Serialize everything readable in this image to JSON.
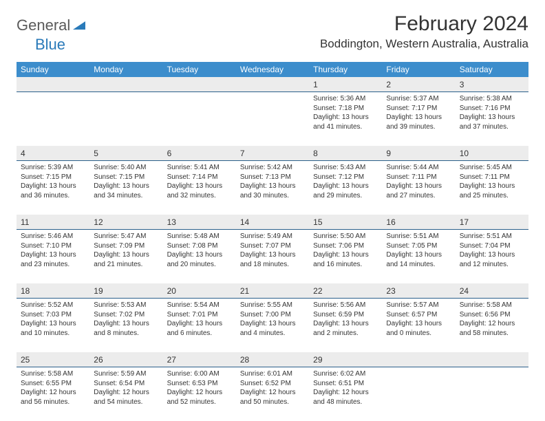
{
  "brand": {
    "name_a": "General",
    "name_b": "Blue"
  },
  "title": "February 2024",
  "location": "Boddington, Western Australia, Australia",
  "colors": {
    "header_bg": "#3c8dcc",
    "header_text": "#ffffff",
    "daynum_bg": "#ececec",
    "daynum_border": "#2a5f8a",
    "text": "#333333",
    "logo_gray": "#5a5a5a",
    "logo_blue": "#2a7ab9"
  },
  "day_labels": [
    "Sunday",
    "Monday",
    "Tuesday",
    "Wednesday",
    "Thursday",
    "Friday",
    "Saturday"
  ],
  "weeks": [
    [
      {
        "num": "",
        "sunrise": "",
        "sunset": "",
        "daylight": ""
      },
      {
        "num": "",
        "sunrise": "",
        "sunset": "",
        "daylight": ""
      },
      {
        "num": "",
        "sunrise": "",
        "sunset": "",
        "daylight": ""
      },
      {
        "num": "",
        "sunrise": "",
        "sunset": "",
        "daylight": ""
      },
      {
        "num": "1",
        "sunrise": "Sunrise: 5:36 AM",
        "sunset": "Sunset: 7:18 PM",
        "daylight": "Daylight: 13 hours and 41 minutes."
      },
      {
        "num": "2",
        "sunrise": "Sunrise: 5:37 AM",
        "sunset": "Sunset: 7:17 PM",
        "daylight": "Daylight: 13 hours and 39 minutes."
      },
      {
        "num": "3",
        "sunrise": "Sunrise: 5:38 AM",
        "sunset": "Sunset: 7:16 PM",
        "daylight": "Daylight: 13 hours and 37 minutes."
      }
    ],
    [
      {
        "num": "4",
        "sunrise": "Sunrise: 5:39 AM",
        "sunset": "Sunset: 7:15 PM",
        "daylight": "Daylight: 13 hours and 36 minutes."
      },
      {
        "num": "5",
        "sunrise": "Sunrise: 5:40 AM",
        "sunset": "Sunset: 7:15 PM",
        "daylight": "Daylight: 13 hours and 34 minutes."
      },
      {
        "num": "6",
        "sunrise": "Sunrise: 5:41 AM",
        "sunset": "Sunset: 7:14 PM",
        "daylight": "Daylight: 13 hours and 32 minutes."
      },
      {
        "num": "7",
        "sunrise": "Sunrise: 5:42 AM",
        "sunset": "Sunset: 7:13 PM",
        "daylight": "Daylight: 13 hours and 30 minutes."
      },
      {
        "num": "8",
        "sunrise": "Sunrise: 5:43 AM",
        "sunset": "Sunset: 7:12 PM",
        "daylight": "Daylight: 13 hours and 29 minutes."
      },
      {
        "num": "9",
        "sunrise": "Sunrise: 5:44 AM",
        "sunset": "Sunset: 7:11 PM",
        "daylight": "Daylight: 13 hours and 27 minutes."
      },
      {
        "num": "10",
        "sunrise": "Sunrise: 5:45 AM",
        "sunset": "Sunset: 7:11 PM",
        "daylight": "Daylight: 13 hours and 25 minutes."
      }
    ],
    [
      {
        "num": "11",
        "sunrise": "Sunrise: 5:46 AM",
        "sunset": "Sunset: 7:10 PM",
        "daylight": "Daylight: 13 hours and 23 minutes."
      },
      {
        "num": "12",
        "sunrise": "Sunrise: 5:47 AM",
        "sunset": "Sunset: 7:09 PM",
        "daylight": "Daylight: 13 hours and 21 minutes."
      },
      {
        "num": "13",
        "sunrise": "Sunrise: 5:48 AM",
        "sunset": "Sunset: 7:08 PM",
        "daylight": "Daylight: 13 hours and 20 minutes."
      },
      {
        "num": "14",
        "sunrise": "Sunrise: 5:49 AM",
        "sunset": "Sunset: 7:07 PM",
        "daylight": "Daylight: 13 hours and 18 minutes."
      },
      {
        "num": "15",
        "sunrise": "Sunrise: 5:50 AM",
        "sunset": "Sunset: 7:06 PM",
        "daylight": "Daylight: 13 hours and 16 minutes."
      },
      {
        "num": "16",
        "sunrise": "Sunrise: 5:51 AM",
        "sunset": "Sunset: 7:05 PM",
        "daylight": "Daylight: 13 hours and 14 minutes."
      },
      {
        "num": "17",
        "sunrise": "Sunrise: 5:51 AM",
        "sunset": "Sunset: 7:04 PM",
        "daylight": "Daylight: 13 hours and 12 minutes."
      }
    ],
    [
      {
        "num": "18",
        "sunrise": "Sunrise: 5:52 AM",
        "sunset": "Sunset: 7:03 PM",
        "daylight": "Daylight: 13 hours and 10 minutes."
      },
      {
        "num": "19",
        "sunrise": "Sunrise: 5:53 AM",
        "sunset": "Sunset: 7:02 PM",
        "daylight": "Daylight: 13 hours and 8 minutes."
      },
      {
        "num": "20",
        "sunrise": "Sunrise: 5:54 AM",
        "sunset": "Sunset: 7:01 PM",
        "daylight": "Daylight: 13 hours and 6 minutes."
      },
      {
        "num": "21",
        "sunrise": "Sunrise: 5:55 AM",
        "sunset": "Sunset: 7:00 PM",
        "daylight": "Daylight: 13 hours and 4 minutes."
      },
      {
        "num": "22",
        "sunrise": "Sunrise: 5:56 AM",
        "sunset": "Sunset: 6:59 PM",
        "daylight": "Daylight: 13 hours and 2 minutes."
      },
      {
        "num": "23",
        "sunrise": "Sunrise: 5:57 AM",
        "sunset": "Sunset: 6:57 PM",
        "daylight": "Daylight: 13 hours and 0 minutes."
      },
      {
        "num": "24",
        "sunrise": "Sunrise: 5:58 AM",
        "sunset": "Sunset: 6:56 PM",
        "daylight": "Daylight: 12 hours and 58 minutes."
      }
    ],
    [
      {
        "num": "25",
        "sunrise": "Sunrise: 5:58 AM",
        "sunset": "Sunset: 6:55 PM",
        "daylight": "Daylight: 12 hours and 56 minutes."
      },
      {
        "num": "26",
        "sunrise": "Sunrise: 5:59 AM",
        "sunset": "Sunset: 6:54 PM",
        "daylight": "Daylight: 12 hours and 54 minutes."
      },
      {
        "num": "27",
        "sunrise": "Sunrise: 6:00 AM",
        "sunset": "Sunset: 6:53 PM",
        "daylight": "Daylight: 12 hours and 52 minutes."
      },
      {
        "num": "28",
        "sunrise": "Sunrise: 6:01 AM",
        "sunset": "Sunset: 6:52 PM",
        "daylight": "Daylight: 12 hours and 50 minutes."
      },
      {
        "num": "29",
        "sunrise": "Sunrise: 6:02 AM",
        "sunset": "Sunset: 6:51 PM",
        "daylight": "Daylight: 12 hours and 48 minutes."
      },
      {
        "num": "",
        "sunrise": "",
        "sunset": "",
        "daylight": ""
      },
      {
        "num": "",
        "sunrise": "",
        "sunset": "",
        "daylight": ""
      }
    ]
  ]
}
